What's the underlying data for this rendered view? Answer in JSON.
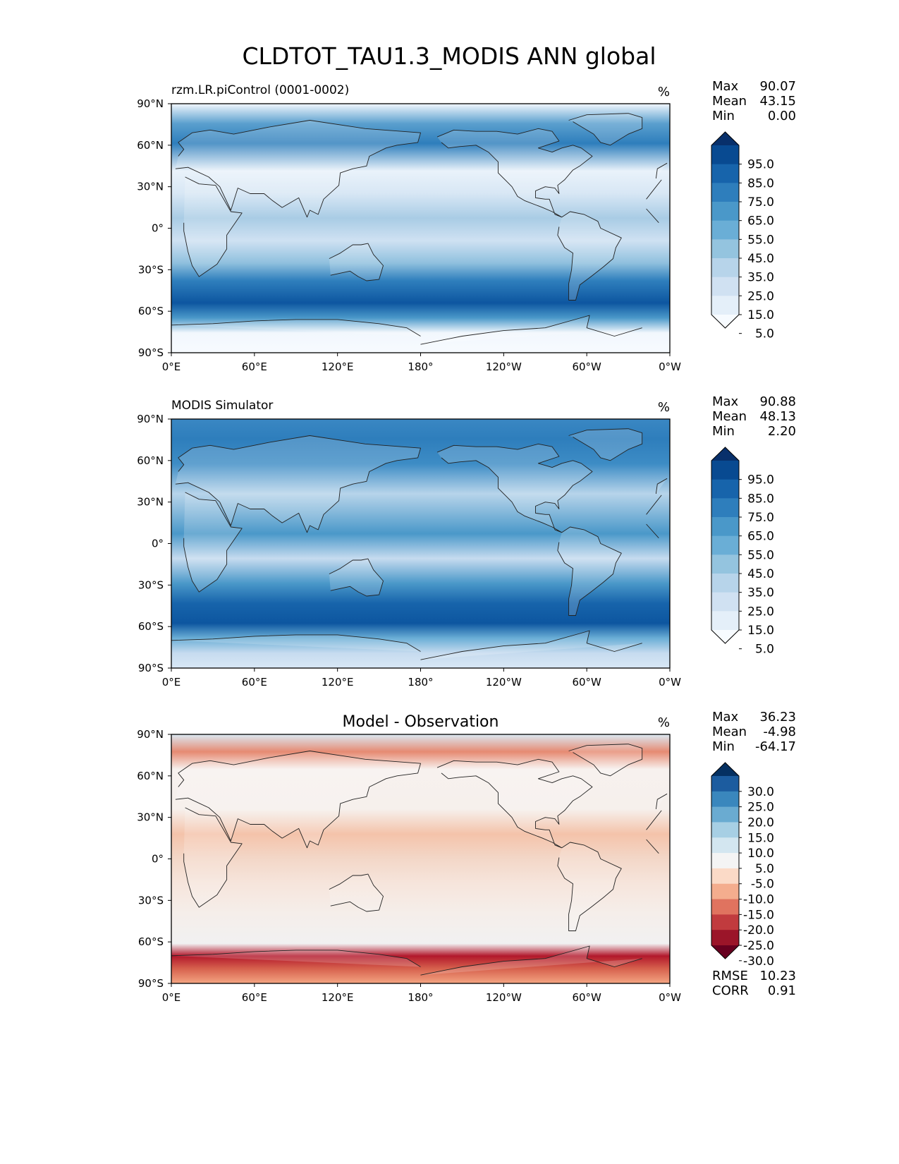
{
  "figure": {
    "title": "CLDTOT_TAU1.3_MODIS ANN global"
  },
  "axes": {
    "xticks": [
      "0°E",
      "60°E",
      "120°E",
      "180°",
      "120°W",
      "60°W",
      "0°W"
    ],
    "yticks": [
      "90°N",
      "60°N",
      "30°N",
      "0°",
      "30°S",
      "60°S",
      "90°S"
    ]
  },
  "chart_data": [
    {
      "type": "heatmap",
      "title": "rzm.LR.piControl (0001-0002)",
      "units": "%",
      "xlim": [
        0,
        360
      ],
      "ylim": [
        -90,
        90
      ],
      "colormap": "sequential-blues",
      "stats": [
        {
          "label": "Max",
          "value": "90.07"
        },
        {
          "label": "Mean",
          "value": "43.15"
        },
        {
          "label": "Min",
          "value": "0.00"
        }
      ],
      "colorbar": {
        "labels": [
          "95.0",
          "85.0",
          "75.0",
          "65.0",
          "55.0",
          "45.0",
          "35.0",
          "25.0",
          "15.0",
          "5.0"
        ],
        "colors": [
          "#08306b",
          "#084a91",
          "#1764ab",
          "#2e7ebc",
          "#4a98c9",
          "#6aaed6",
          "#94c4df",
          "#b7d4ea",
          "#d0e1f2",
          "#e4eff9",
          "#f7fbff"
        ]
      }
    },
    {
      "type": "heatmap",
      "title": "MODIS Simulator",
      "units": "%",
      "xlim": [
        0,
        360
      ],
      "ylim": [
        -90,
        90
      ],
      "colormap": "sequential-blues",
      "stats": [
        {
          "label": "Max",
          "value": "90.88"
        },
        {
          "label": "Mean",
          "value": "48.13"
        },
        {
          "label": "Min",
          "value": "2.20"
        }
      ],
      "colorbar": {
        "labels": [
          "95.0",
          "85.0",
          "75.0",
          "65.0",
          "55.0",
          "45.0",
          "35.0",
          "25.0",
          "15.0",
          "5.0"
        ],
        "colors": [
          "#08306b",
          "#084a91",
          "#1764ab",
          "#2e7ebc",
          "#4a98c9",
          "#6aaed6",
          "#94c4df",
          "#b7d4ea",
          "#d0e1f2",
          "#e4eff9",
          "#f7fbff"
        ]
      }
    },
    {
      "type": "heatmap",
      "title": "Model - Observation",
      "units": "%",
      "xlim": [
        0,
        360
      ],
      "ylim": [
        -90,
        90
      ],
      "colormap": "diverging-red-blue",
      "stats": [
        {
          "label": "Max",
          "value": "36.23"
        },
        {
          "label": "Mean",
          "value": "-4.98"
        },
        {
          "label": "Min",
          "value": "-64.17"
        }
      ],
      "colorbar": {
        "labels": [
          "30.0",
          "25.0",
          "20.0",
          "15.0",
          "10.0",
          "5.0",
          "-5.0",
          "-10.0",
          "-15.0",
          "-20.0",
          "-25.0",
          "-30.0"
        ],
        "colors": [
          "#053061",
          "#1c5c9f",
          "#3a87bd",
          "#6aabd1",
          "#a7cfe4",
          "#d3e6f0",
          "#f4f4f4",
          "#fbdac7",
          "#f4ad8e",
          "#e0735f",
          "#c13b3e",
          "#9b1529",
          "#67001f"
        ]
      },
      "metrics": [
        {
          "label": "RMSE",
          "value": "10.23"
        },
        {
          "label": "CORR",
          "value": "0.91"
        }
      ]
    }
  ]
}
